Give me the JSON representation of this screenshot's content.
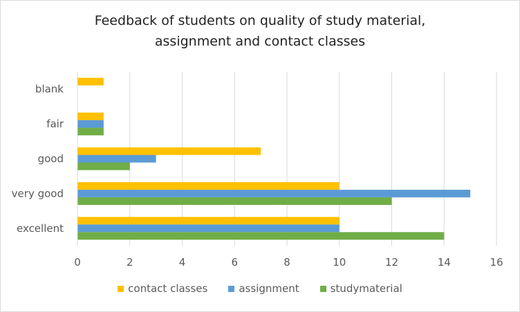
{
  "chart_data": {
    "type": "bar",
    "orientation": "horizontal",
    "title_lines": [
      "Feedback of students on quality of study material,",
      "assignment and contact classes"
    ],
    "categories": [
      "excellent",
      "very good",
      "good",
      "fair",
      "blank"
    ],
    "series": [
      {
        "name": "studymaterial",
        "color": "#70ad47",
        "values": [
          14,
          12,
          2,
          1,
          0
        ]
      },
      {
        "name": "assignment",
        "color": "#5b9bd5",
        "values": [
          10,
          15,
          3,
          1,
          0
        ]
      },
      {
        "name": "contact classes",
        "color": "#ffc000",
        "values": [
          10,
          10,
          7,
          1,
          1
        ]
      }
    ],
    "xlim": [
      0,
      16
    ],
    "x_ticks": [
      0,
      2,
      4,
      6,
      8,
      10,
      12,
      14,
      16
    ],
    "grid": "vertical",
    "legend": "bottom",
    "legend_order": [
      "contact classes",
      "assignment",
      "studymaterial"
    ]
  }
}
